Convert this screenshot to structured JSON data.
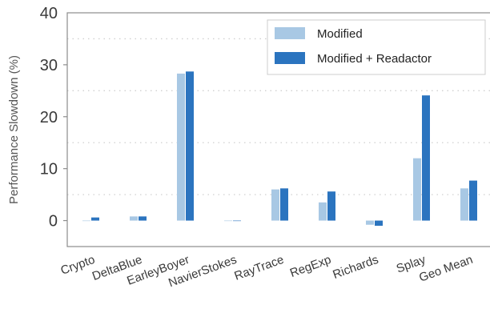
{
  "colors": {
    "modified": "#a8c8e4",
    "modified_readactor": "#2b74bf",
    "grid": "#d0d0d0",
    "frame": "#8c8c8c"
  },
  "chart_data": {
    "type": "bar",
    "title": "",
    "xlabel": "",
    "ylabel": "Performance Slowdown (%)",
    "ylim": [
      -5,
      40
    ],
    "yticks": [
      0,
      10,
      20,
      30,
      40
    ],
    "grid": "horizontal dotted",
    "legend_position": "top-right",
    "categories": [
      "Crypto",
      "DeltaBlue",
      "EarleyBoyer",
      "NavierStokes",
      "RayTrace",
      "RegExp",
      "Richards",
      "Splay",
      "Geo Mean"
    ],
    "series": [
      {
        "name": "Modified",
        "color": "#a8c8e4",
        "values": [
          0.0,
          0.8,
          28.3,
          0.0,
          6.0,
          3.5,
          -0.8,
          12.0,
          6.2
        ]
      },
      {
        "name": "Modified + Readactor",
        "color": "#2b74bf",
        "values": [
          0.6,
          0.8,
          28.7,
          0.0,
          6.2,
          5.6,
          -1.0,
          24.1,
          7.7
        ]
      }
    ]
  }
}
